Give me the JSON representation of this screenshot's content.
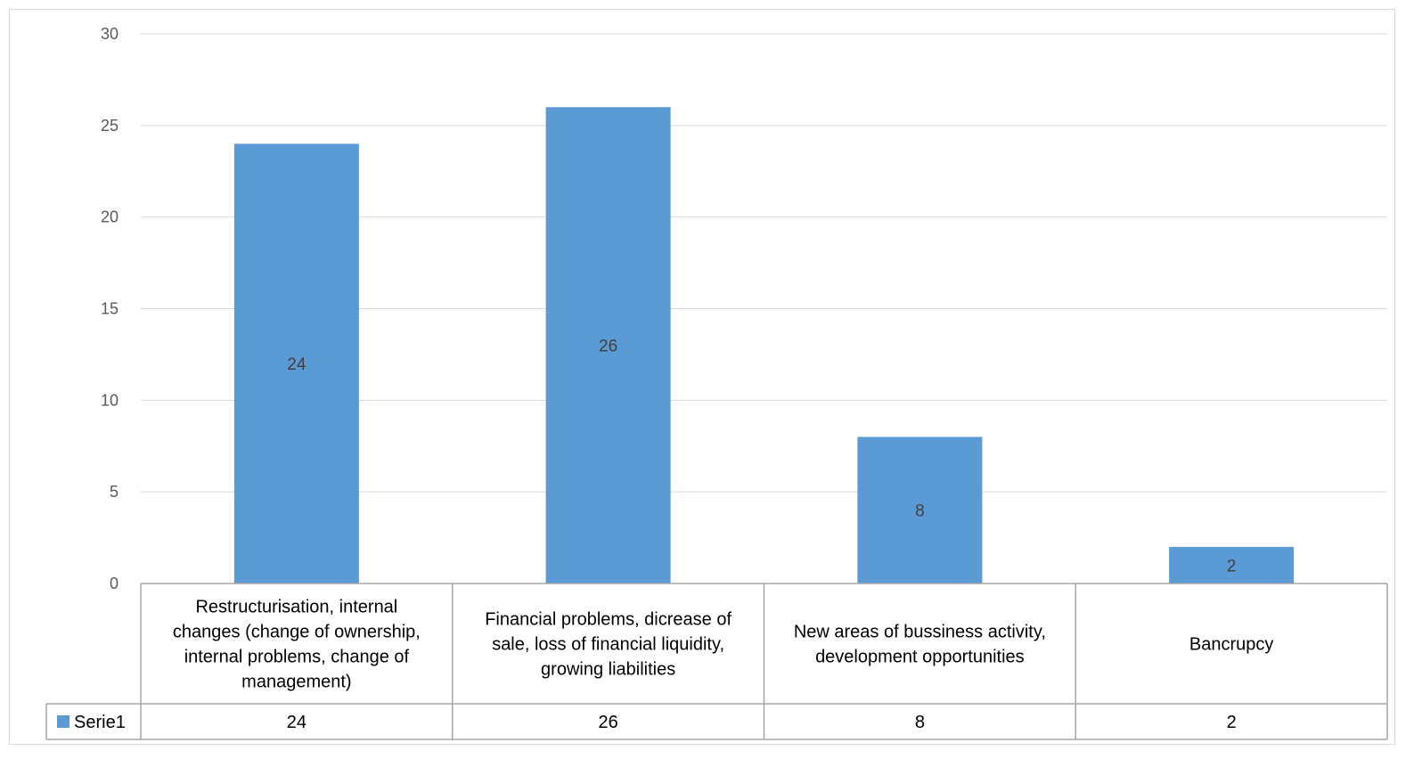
{
  "chart_data": {
    "type": "bar",
    "categories": [
      "Restructurisation, internal changes (change of ownership, internal problems, change of management)",
      "Financial problems, dicrease of sale, loss of financial liquidity, growing liabilities",
      "New areas of bussiness activity, development opportunities",
      "Bancrupcy"
    ],
    "category_lines": [
      [
        "Restructurisation, internal",
        "changes (change of ownership,",
        "internal problems, change of",
        "management)"
      ],
      [
        "Financial problems, dicrease of",
        "sale, loss of financial liquidity,",
        "growing liabilities"
      ],
      [
        "New areas of bussiness activity,",
        "development opportunities"
      ],
      [
        "Bancrupcy"
      ]
    ],
    "series": [
      {
        "name": "Serie1",
        "values": [
          24,
          26,
          8,
          2
        ],
        "color": "#5b9bd5"
      }
    ],
    "data_labels": [
      "24",
      "26",
      "8",
      "2"
    ],
    "ylim": [
      0,
      30
    ],
    "yticks": [
      "0",
      "5",
      "10",
      "15",
      "20",
      "25",
      "30"
    ],
    "grid": true,
    "legend": "data-table",
    "gridline_color": "#d9d9d9",
    "table_border_color": "#a6a6a6"
  }
}
